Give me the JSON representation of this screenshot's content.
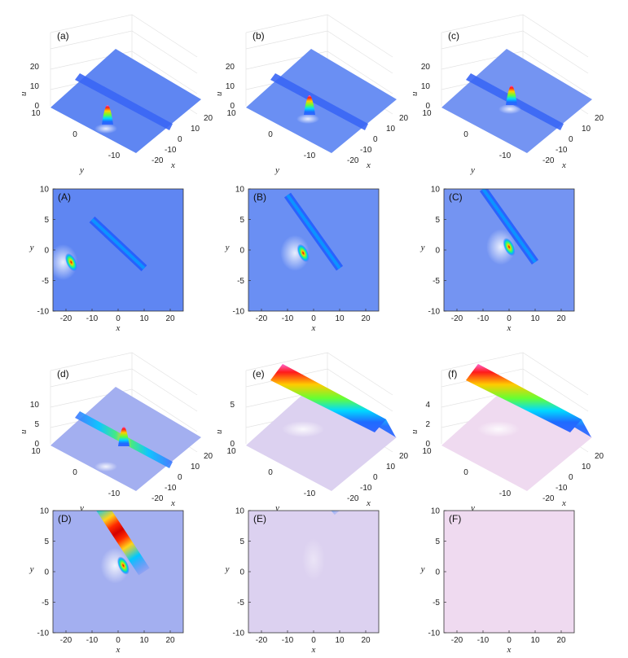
{
  "figure": {
    "panels3d": [
      {
        "label": "(a)",
        "zticks": [
          "0",
          "10",
          "20"
        ],
        "regime": "lump-line"
      },
      {
        "label": "(b)",
        "zticks": [
          "0",
          "10",
          "20"
        ],
        "regime": "lump-line"
      },
      {
        "label": "(c)",
        "zticks": [
          "0",
          "10",
          "20"
        ],
        "regime": "lump-line"
      },
      {
        "label": "(d)",
        "zticks": [
          "0",
          "5",
          "10"
        ],
        "regime": "lump-line"
      },
      {
        "label": "(e)",
        "zticks": [
          "0",
          "5"
        ],
        "regime": "wide"
      },
      {
        "label": "(f)",
        "zticks": [
          "0",
          "2",
          "4"
        ],
        "regime": "wide"
      }
    ],
    "panels2d": [
      {
        "label": "(A)"
      },
      {
        "label": "(B)"
      },
      {
        "label": "(C)"
      },
      {
        "label": "(D)"
      },
      {
        "label": "(E)"
      },
      {
        "label": "(F)"
      }
    ],
    "axes3d": {
      "xlabel": "x",
      "ylabel": "y",
      "zlabel": "u",
      "xticks": [
        "-20",
        "-10",
        "0",
        "10",
        "20"
      ],
      "yticks": [
        "10",
        "0",
        "-10"
      ]
    },
    "axes2d": {
      "xlabel": "x",
      "ylabel": "y",
      "xticks": [
        "-20",
        "-10",
        "0",
        "10",
        "20"
      ],
      "yticks": [
        "10",
        "5",
        "0",
        "-5",
        "-10"
      ]
    }
  },
  "chart_data": {
    "type": "heatmap",
    "description_of_content": [],
    "x_range": [
      -25,
      25
    ],
    "y_range": [
      -10,
      10
    ],
    "panels": [
      {
        "panel": "(A)",
        "background": "#5f86f2",
        "line_x_at_y": [
          [
            10,
            -3
          ],
          [
            -10,
            5
          ]
        ],
        "lump_center": [
          -18,
          -2
        ]
      },
      {
        "panel": "(B)",
        "background": "#6a8ff3",
        "line_x_at_y": [
          [
            10,
            -3
          ],
          [
            -10,
            9
          ]
        ],
        "lump_center": [
          -4,
          -0.5
        ]
      },
      {
        "panel": "(C)",
        "background": "#7494f2",
        "line_x_at_y": [
          [
            10,
            -2
          ],
          [
            -10,
            10
          ]
        ],
        "lump_center": [
          0,
          0.5
        ]
      },
      {
        "panel": "(D)",
        "background": "#a3aff0",
        "line_x_at_y": [
          [
            10,
            0
          ],
          [
            -10,
            13
          ]
        ],
        "lump_center": [
          2,
          1
        ]
      },
      {
        "panel": "(E)",
        "background": "#dcd1f0",
        "line_x_at_y": [
          [
            10,
            10
          ],
          [
            -10,
            20
          ]
        ],
        "lump_center": null
      },
      {
        "panel": "(F)",
        "background": "#efdaf0",
        "line_x_at_y": [
          [
            10,
            16
          ],
          [
            -10,
            25
          ]
        ],
        "lump_center": null
      }
    ]
  }
}
